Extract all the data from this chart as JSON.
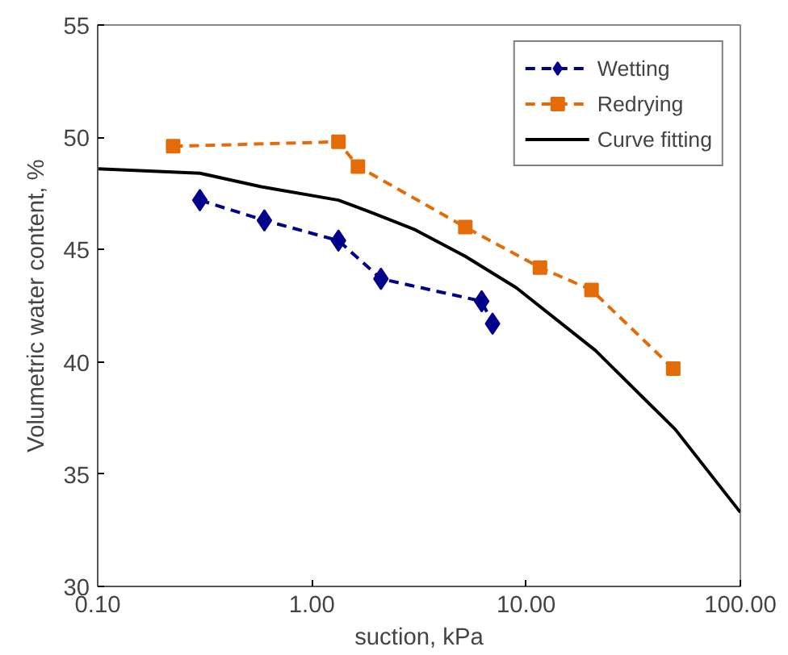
{
  "chart_data": {
    "type": "line",
    "xlabel": "suction, kPa",
    "ylabel": "Volumetric water content, %",
    "log": "x",
    "xlim": [
      0.1,
      100
    ],
    "ylim": [
      30,
      55
    ],
    "xticks": [
      {
        "value": 0.1,
        "label": "0.10"
      },
      {
        "value": 1,
        "label": "1.00"
      },
      {
        "value": 10,
        "label": "10.00"
      },
      {
        "value": 100,
        "label": "100.00"
      }
    ],
    "yticks": [
      30,
      35,
      40,
      45,
      50,
      55
    ],
    "grid": false,
    "legend": "top right",
    "series": [
      {
        "name": "Wetting",
        "color": "#00008b",
        "marker": "diamond",
        "line_style": "dashed",
        "x": [
          0.3,
          0.6,
          1.33,
          2.1,
          6.2,
          6.97
        ],
        "values": [
          47.2,
          46.3,
          45.4,
          43.7,
          42.7,
          41.7
        ]
      },
      {
        "name": "Redrying",
        "color": "#e36c09",
        "marker": "square",
        "line_style": "dashed",
        "x": [
          0.225,
          1.33,
          1.64,
          5.2,
          11.6,
          20.2,
          48.6
        ],
        "values": [
          49.6,
          49.8,
          48.7,
          46.0,
          44.2,
          43.2,
          39.7
        ]
      },
      {
        "name": "Curve fitting",
        "color": "#000000",
        "marker": "none",
        "line_style": "solid",
        "x": [
          0.1,
          0.3,
          0.58,
          1.33,
          1.84,
          3.0,
          5.2,
          9.0,
          21.1,
          49.6,
          100
        ],
        "values": [
          48.6,
          48.4,
          47.8,
          47.2,
          46.7,
          45.9,
          44.7,
          43.3,
          40.5,
          37.0,
          33.3
        ]
      }
    ]
  }
}
